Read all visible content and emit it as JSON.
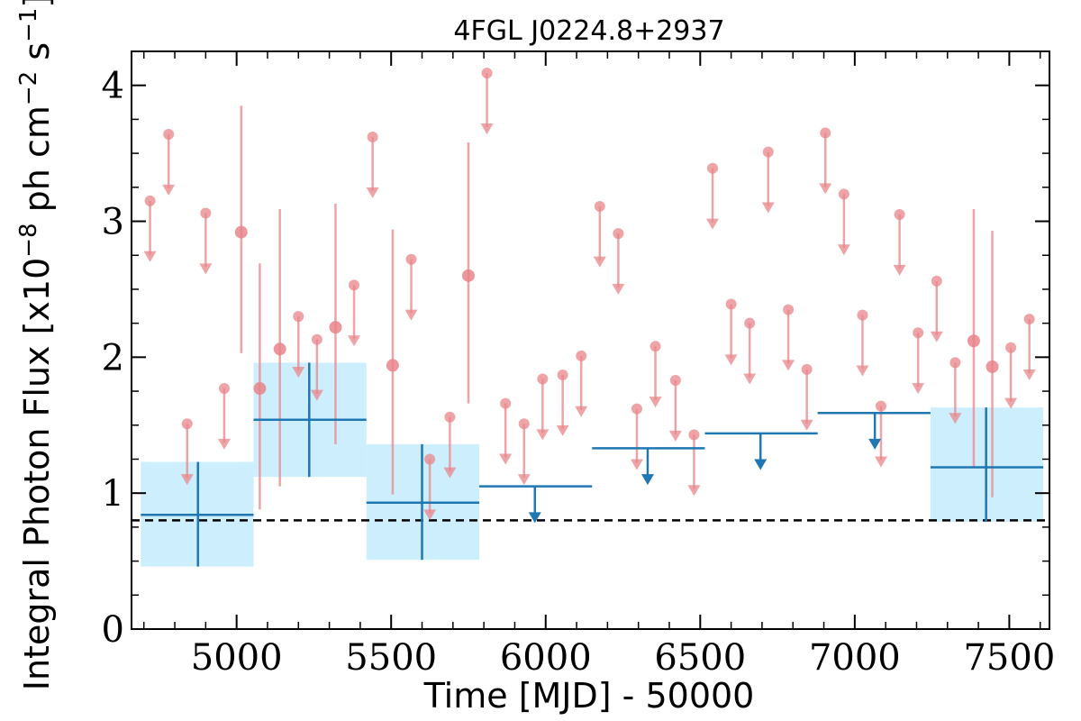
{
  "chart_data": {
    "type": "scatter",
    "title": "4FGL J0224.8+2937",
    "xlabel": "Time [MJD] - 50000",
    "ylabel": "Integral Photon Flux [x10",
    "ylabel_exp": "−8",
    "ylabel_mid": " ph cm",
    "ylabel_exp2": "−2",
    "ylabel_mid2": " s",
    "ylabel_exp3": "−1",
    "ylabel_end": "]",
    "xlim": [
      4660,
      7630
    ],
    "ylim": [
      0,
      4.25
    ],
    "xticks": [
      5000,
      5500,
      6000,
      6500,
      7000,
      7500
    ],
    "yticks": [
      0,
      1,
      2,
      3,
      4
    ],
    "reference_flux": 0.8,
    "colors": {
      "short_bins": "#e8858a",
      "long_bins": "#1f77b4",
      "long_bins_fill": "#cdeefd",
      "reference": "#000000"
    },
    "short_bins_detections": [
      {
        "x": 5015,
        "y": 2.92,
        "ylo": 2.03,
        "yhi": 3.85
      },
      {
        "x": 5075,
        "y": 1.77,
        "ylo": 0.88,
        "yhi": 2.69
      },
      {
        "x": 5140,
        "y": 2.06,
        "ylo": 1.05,
        "yhi": 3.09
      },
      {
        "x": 5320,
        "y": 2.22,
        "ylo": 1.36,
        "yhi": 3.13
      },
      {
        "x": 5505,
        "y": 1.94,
        "ylo": 0.99,
        "yhi": 2.94
      },
      {
        "x": 5750,
        "y": 2.6,
        "ylo": 1.66,
        "yhi": 3.58
      },
      {
        "x": 7385,
        "y": 2.12,
        "ylo": 1.19,
        "yhi": 3.09
      },
      {
        "x": 7445,
        "y": 1.93,
        "ylo": 0.97,
        "yhi": 2.93
      }
    ],
    "short_bins_upper_limits": [
      {
        "x": 4720,
        "y": 3.15
      },
      {
        "x": 4780,
        "y": 3.64
      },
      {
        "x": 4840,
        "y": 1.51
      },
      {
        "x": 4900,
        "y": 3.06
      },
      {
        "x": 4960,
        "y": 1.77
      },
      {
        "x": 5200,
        "y": 2.3
      },
      {
        "x": 5260,
        "y": 2.13
      },
      {
        "x": 5380,
        "y": 2.53
      },
      {
        "x": 5440,
        "y": 3.62
      },
      {
        "x": 5565,
        "y": 2.72
      },
      {
        "x": 5625,
        "y": 1.25
      },
      {
        "x": 5690,
        "y": 1.56
      },
      {
        "x": 5810,
        "y": 4.09
      },
      {
        "x": 5870,
        "y": 1.66
      },
      {
        "x": 5930,
        "y": 1.51
      },
      {
        "x": 5990,
        "y": 1.84
      },
      {
        "x": 6055,
        "y": 1.87
      },
      {
        "x": 6115,
        "y": 2.01
      },
      {
        "x": 6175,
        "y": 3.11
      },
      {
        "x": 6235,
        "y": 2.91
      },
      {
        "x": 6295,
        "y": 1.62
      },
      {
        "x": 6355,
        "y": 2.08
      },
      {
        "x": 6420,
        "y": 1.83
      },
      {
        "x": 6480,
        "y": 1.43
      },
      {
        "x": 6540,
        "y": 3.39
      },
      {
        "x": 6600,
        "y": 2.39
      },
      {
        "x": 6660,
        "y": 2.25
      },
      {
        "x": 6720,
        "y": 3.51
      },
      {
        "x": 6785,
        "y": 2.35
      },
      {
        "x": 6845,
        "y": 1.91
      },
      {
        "x": 6905,
        "y": 3.65
      },
      {
        "x": 6965,
        "y": 3.2
      },
      {
        "x": 7025,
        "y": 2.31
      },
      {
        "x": 7085,
        "y": 1.64
      },
      {
        "x": 7145,
        "y": 3.05
      },
      {
        "x": 7205,
        "y": 2.18
      },
      {
        "x": 7265,
        "y": 2.56
      },
      {
        "x": 7325,
        "y": 1.96
      },
      {
        "x": 7505,
        "y": 2.07
      },
      {
        "x": 7565,
        "y": 2.28
      }
    ],
    "long_bins_detections": [
      {
        "x0": 4690,
        "x1": 5055,
        "xc": 4875,
        "y": 0.84,
        "ylo": 0.46,
        "yhi": 1.23
      },
      {
        "x0": 5055,
        "x1": 5420,
        "xc": 5235,
        "y": 1.54,
        "ylo": 1.12,
        "yhi": 1.96
      },
      {
        "x0": 5420,
        "x1": 5785,
        "xc": 5600,
        "y": 0.93,
        "ylo": 0.51,
        "yhi": 1.36
      },
      {
        "x0": 7245,
        "x1": 7610,
        "xc": 7425,
        "y": 1.19,
        "ylo": 0.79,
        "yhi": 1.63
      }
    ],
    "long_bins_upper_limits": [
      {
        "x0": 5785,
        "x1": 6150,
        "xc": 5965,
        "y": 1.05
      },
      {
        "x0": 6150,
        "x1": 6515,
        "xc": 6330,
        "y": 1.33
      },
      {
        "x0": 6515,
        "x1": 6880,
        "xc": 6695,
        "y": 1.44
      },
      {
        "x0": 6880,
        "x1": 7245,
        "xc": 7065,
        "y": 1.59
      }
    ]
  }
}
